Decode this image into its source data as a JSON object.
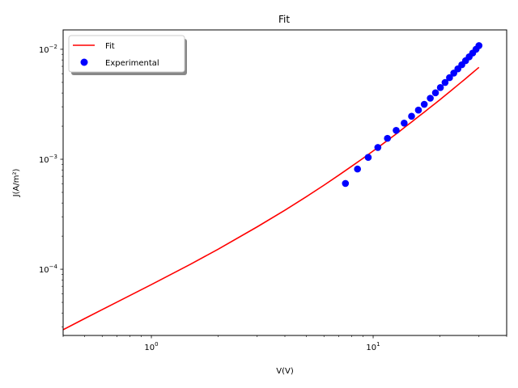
{
  "chart_data": {
    "type": "line",
    "title": "Fit",
    "xlabel": "V(V)",
    "ylabel": "J(A/m²)",
    "xscale": "log",
    "yscale": "log",
    "xlim": [
      0.4,
      40
    ],
    "ylim": [
      2.5e-05,
      0.015
    ],
    "grid": false,
    "legend": "top-left",
    "x_ticks": [
      {
        "value": 1,
        "base": "10",
        "exp": "0"
      },
      {
        "value": 10,
        "base": "10",
        "exp": "1"
      }
    ],
    "y_ticks": [
      {
        "value": 0.0001,
        "base": "10",
        "exp": "−4"
      },
      {
        "value": 0.001,
        "base": "10",
        "exp": "−3"
      },
      {
        "value": 0.01,
        "base": "10",
        "exp": "−2"
      }
    ],
    "series": [
      {
        "name": "Fit",
        "style": "line",
        "color": "#ff0000",
        "x": [
          0.4,
          0.5,
          0.7,
          1.0,
          1.5,
          2,
          3,
          4,
          5,
          6,
          7,
          8,
          9,
          10,
          11,
          12,
          13,
          14,
          15,
          16,
          17,
          18,
          19,
          20,
          21,
          22,
          23,
          24,
          25,
          26,
          27,
          28,
          29,
          30
        ],
        "y": [
          2.82e-05,
          3.56e-05,
          5.03e-05,
          7.25e-05,
          0.000111,
          0.000152,
          0.000243,
          0.000344,
          0.000457,
          0.000581,
          0.000717,
          0.000864,
          0.00102,
          0.00119,
          0.00137,
          0.00156,
          0.00176,
          0.00198,
          0.0022,
          0.00244,
          0.00268,
          0.00294,
          0.0032,
          0.00348,
          0.00377,
          0.00407,
          0.00438,
          0.0047,
          0.00503,
          0.00537,
          0.00573,
          0.00609,
          0.00647,
          0.00685
        ]
      },
      {
        "name": "Experimental",
        "style": "markers",
        "color": "#0000ff",
        "x": [
          7.5,
          8.5,
          9.5,
          10.5,
          11.6,
          12.7,
          13.8,
          14.9,
          16.0,
          17.0,
          18.1,
          19.1,
          20.1,
          21.1,
          22.1,
          23.1,
          24.1,
          25.1,
          26.1,
          27.1,
          28.1,
          29.1,
          30.0
        ],
        "y": [
          0.000603,
          0.000815,
          0.00104,
          0.00128,
          0.00155,
          0.00183,
          0.00213,
          0.00246,
          0.0028,
          0.00316,
          0.00359,
          0.00402,
          0.00449,
          0.00499,
          0.00552,
          0.00607,
          0.00664,
          0.00723,
          0.00787,
          0.00853,
          0.00924,
          0.01,
          0.0108
        ]
      }
    ]
  }
}
